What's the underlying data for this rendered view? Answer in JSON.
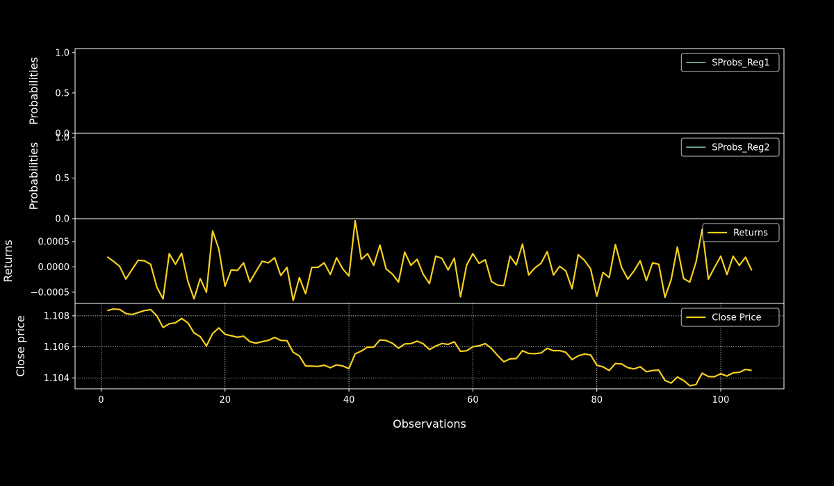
{
  "figure": {
    "background": "#000000",
    "foreground": "#ffffff",
    "grid_color": "#ffffff"
  },
  "chart_data": [
    {
      "type": "line",
      "title": "",
      "xlabel": "",
      "ylabel": "Probabilities",
      "xlim": [
        -4.2,
        110.2
      ],
      "ylim": [
        0.0,
        1.05
      ],
      "yticks": [
        0.0,
        0.5,
        1.0
      ],
      "ytick_labels": [
        "0.0",
        "0.5",
        "1.0"
      ],
      "grid": false,
      "legend_position": "top-right",
      "series": [
        {
          "name": "SProbs_Reg1",
          "color": "#8dd3c7",
          "x": [],
          "values": []
        }
      ]
    },
    {
      "type": "line",
      "title": "",
      "xlabel": "",
      "ylabel": "Probabilities",
      "xlim": [
        -4.2,
        110.2
      ],
      "ylim": [
        0.0,
        1.05
      ],
      "yticks": [
        0.0,
        0.5,
        1.0
      ],
      "ytick_labels": [
        "0.0",
        "0.5",
        "1.0"
      ],
      "grid": false,
      "legend_position": "top-right",
      "series": [
        {
          "name": "SProbs_Reg2",
          "color": "#8dd3c7",
          "x": [],
          "values": []
        }
      ]
    },
    {
      "type": "line",
      "title": "",
      "xlabel": "",
      "ylabel": "Returns",
      "xlim": [
        -4.2,
        110.2
      ],
      "ylim": [
        -0.00072,
        0.00095
      ],
      "yticks": [
        -0.0005,
        0.0,
        0.0005
      ],
      "ytick_labels": [
        "−0.0005",
        "0.0000",
        "0.0005"
      ],
      "grid": false,
      "legend_position": "top-right",
      "series": [
        {
          "name": "Returns",
          "color": "#f7d01f",
          "x": [
            1,
            2,
            3,
            4,
            5,
            6,
            7,
            8,
            9,
            10,
            11,
            12,
            13,
            14,
            15,
            16,
            17,
            18,
            19,
            20,
            21,
            22,
            23,
            24,
            25,
            26,
            27,
            28,
            29,
            30,
            31,
            32,
            33,
            34,
            35,
            36,
            37,
            38,
            39,
            40,
            41,
            42,
            43,
            44,
            45,
            46,
            47,
            48,
            49,
            50,
            51,
            52,
            53,
            54,
            55,
            56,
            57,
            58,
            59,
            60,
            61,
            62,
            63,
            64,
            65,
            66,
            67,
            68,
            69,
            70,
            71,
            72,
            73,
            74,
            75,
            76,
            77,
            78,
            79,
            80,
            81,
            82,
            83,
            84,
            85,
            86,
            87,
            88,
            89,
            90,
            91,
            92,
            93,
            94,
            95,
            96,
            97,
            98,
            99,
            100,
            101,
            102,
            103,
            104,
            105
          ],
          "values": [
            0.0002,
            0.00011,
            1e-05,
            -0.00024,
            -5e-05,
            0.00013,
            0.00012,
            5e-05,
            -0.0004,
            -0.00063,
            0.00026,
            5e-05,
            0.00027,
            -0.00028,
            -0.00063,
            -0.00023,
            -0.0005,
            0.00071,
            0.00035,
            -0.00038,
            -6e-05,
            -7e-05,
            8e-05,
            -0.0003,
            -9e-05,
            0.00011,
            8e-05,
            0.00018,
            -0.00017,
            -1e-05,
            -0.00066,
            -0.00021,
            -0.00053,
            -1e-05,
            -1e-05,
            8e-05,
            -0.00015,
            0.00018,
            -4e-05,
            -0.00018,
            0.00091,
            0.00015,
            0.00026,
            3e-05,
            0.00043,
            -4e-05,
            -0.00014,
            -0.0003,
            0.00029,
            3e-05,
            0.00015,
            -0.00015,
            -0.00033,
            0.00021,
            0.00017,
            -6e-05,
            0.00017,
            -0.00059,
            4e-05,
            0.00026,
            7e-05,
            0.00014,
            -0.00029,
            -0.00036,
            -0.00037,
            0.00021,
            4e-05,
            0.00045,
            -0.00016,
            -2e-05,
            7e-05,
            0.0003,
            -0.00016,
            1e-05,
            -8e-05,
            -0.00043,
            0.00024,
            0.00013,
            -4e-05,
            -0.00058,
            -0.00011,
            -0.00021,
            0.00044,
            -1e-05,
            -0.00024,
            -8e-05,
            0.00012,
            -0.00027,
            8e-05,
            5e-05,
            -0.0006,
            -0.00025,
            0.00039,
            -0.00023,
            -0.0003,
            9e-05,
            0.00074,
            -0.00024,
            -1e-05,
            0.00021,
            -0.00015,
            0.00021,
            3e-05,
            0.00019,
            -7e-05
          ]
        }
      ]
    },
    {
      "type": "line",
      "title": "",
      "xlabel": "Observations",
      "ylabel": "Close price",
      "xlim": [
        -4.2,
        110.2
      ],
      "ylim": [
        1.1033,
        1.1088
      ],
      "yticks": [
        1.104,
        1.106,
        1.108
      ],
      "ytick_labels": [
        "1.104",
        "1.106",
        "1.108"
      ],
      "xticks": [
        0,
        20,
        40,
        60,
        80,
        100
      ],
      "xtick_labels": [
        "0",
        "20",
        "40",
        "60",
        "80",
        "100"
      ],
      "grid": true,
      "legend_position": "top-right",
      "series": [
        {
          "name": "Close Price",
          "color": "#f7d01f",
          "x": [
            1,
            2,
            3,
            4,
            5,
            6,
            7,
            8,
            9,
            10,
            11,
            12,
            13,
            14,
            15,
            16,
            17,
            18,
            19,
            20,
            21,
            22,
            23,
            24,
            25,
            26,
            27,
            28,
            29,
            30,
            31,
            32,
            33,
            34,
            35,
            36,
            37,
            38,
            39,
            40,
            41,
            42,
            43,
            44,
            45,
            46,
            47,
            48,
            49,
            50,
            51,
            52,
            53,
            54,
            55,
            56,
            57,
            58,
            59,
            60,
            61,
            62,
            63,
            64,
            65,
            66,
            67,
            68,
            69,
            70,
            71,
            72,
            73,
            74,
            75,
            76,
            77,
            78,
            79,
            80,
            81,
            82,
            83,
            84,
            85,
            86,
            87,
            88,
            89,
            90,
            91,
            92,
            93,
            94,
            95,
            96,
            97,
            98,
            99,
            100,
            101,
            102,
            103,
            104,
            105
          ],
          "values": [
            1.10834,
            1.10844,
            1.10841,
            1.10815,
            1.10808,
            1.10821,
            1.10834,
            1.1084,
            1.108,
            1.10725,
            1.10749,
            1.10755,
            1.10783,
            1.10755,
            1.1069,
            1.10666,
            1.10606,
            1.10686,
            1.10722,
            1.10681,
            1.10672,
            1.10662,
            1.10669,
            1.10634,
            1.10624,
            1.10634,
            1.10642,
            1.10661,
            1.10642,
            1.1064,
            1.10565,
            1.10542,
            1.10477,
            1.10476,
            1.10474,
            1.10482,
            1.10466,
            1.10484,
            1.10477,
            1.1046,
            1.10555,
            1.10573,
            1.10599,
            1.10599,
            1.10645,
            1.10641,
            1.10624,
            1.10592,
            1.10619,
            1.10621,
            1.10637,
            1.1062,
            1.10583,
            1.10605,
            1.10622,
            1.10616,
            1.10633,
            1.10571,
            1.10575,
            1.10601,
            1.10607,
            1.10621,
            1.1059,
            1.10544,
            1.10504,
            1.10523,
            1.10525,
            1.10575,
            1.10558,
            1.10556,
            1.10561,
            1.10591,
            1.10575,
            1.10576,
            1.10565,
            1.10518,
            1.10542,
            1.10554,
            1.10548,
            1.10482,
            1.10471,
            1.10448,
            1.10493,
            1.1049,
            1.10466,
            1.10458,
            1.10472,
            1.1044,
            1.10448,
            1.1045,
            1.10384,
            1.10367,
            1.10406,
            1.10384,
            1.1035,
            1.10357,
            1.10431,
            1.10409,
            1.10408,
            1.10427,
            1.10412,
            1.10433,
            1.10436,
            1.10455,
            1.10448
          ]
        }
      ]
    }
  ]
}
